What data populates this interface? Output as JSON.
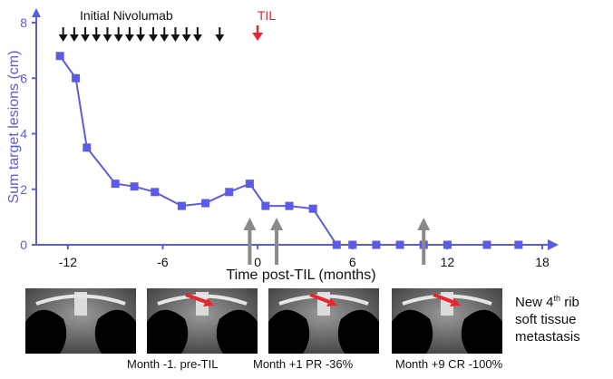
{
  "chart_data": {
    "type": "line",
    "title": "",
    "xlabel": "Time post-TIL (months)",
    "ylabel": "Sum target lesions (cm)",
    "xlim": [
      -14,
      18
    ],
    "ylim": [
      0,
      8
    ],
    "xticks": [
      -12,
      -6,
      0,
      6,
      12,
      18
    ],
    "yticks": [
      0,
      2,
      4,
      6,
      8
    ],
    "series": [
      {
        "name": "Sum target lesions",
        "color": "#5b5be6",
        "x": [
          -12.5,
          -11.5,
          -10.8,
          -9,
          -7.8,
          -6.5,
          -4.8,
          -3.3,
          -1.8,
          -0.5,
          0.5,
          2,
          3.5,
          5,
          6,
          7.5,
          9,
          10.5,
          12,
          14.5,
          16.5
        ],
        "y": [
          6.8,
          6.0,
          3.5,
          2.2,
          2.1,
          1.9,
          1.4,
          1.5,
          1.9,
          2.2,
          1.4,
          1.4,
          1.3,
          0,
          0,
          0,
          0,
          0,
          0,
          0,
          0
        ]
      }
    ],
    "annotations": {
      "nivolumab_label": "Initial Nivolumab",
      "nivolumab_doses_x": [
        -12.3,
        -11.6,
        -10.9,
        -10.2,
        -9.5,
        -8.8,
        -8.1,
        -7.4,
        -6.6,
        -5.9,
        -5.2,
        -4.5,
        -3.8,
        -2.4
      ],
      "til_label": "TIL",
      "til_x": 0,
      "scan_arrows_x": [
        -0.5,
        1.2,
        10.5
      ]
    }
  },
  "colors": {
    "series": "#5b5be6",
    "axis": "#5b5be6",
    "til": "#e8262d",
    "dose_arrow": "#111111",
    "scan_arrow": "#8a8a8a"
  },
  "images": [
    {
      "caption": "Month -1. pre-TIL"
    },
    {
      "caption": "Month +1 PR -36%"
    },
    {
      "caption": "Month +9 CR -100%"
    }
  ],
  "image_note": {
    "line1_prefix": "New 4",
    "line1_sup": "th",
    "line1_suffix": " rib",
    "line2": "soft tissue",
    "line3": "metastasis"
  }
}
